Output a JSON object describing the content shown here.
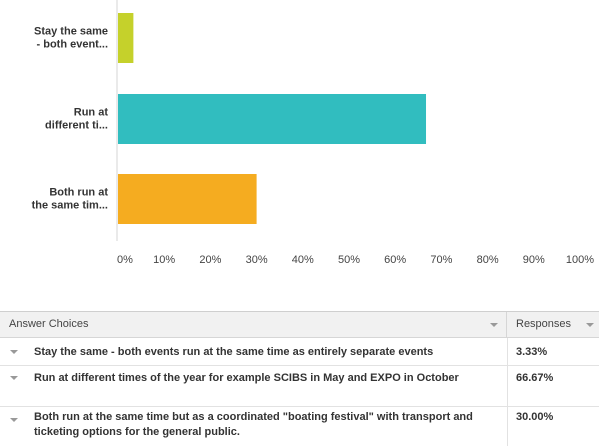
{
  "chart_data": {
    "type": "bar",
    "orientation": "horizontal",
    "categories": [
      "Stay the same - both event...",
      "Run at different ti...",
      "Both run at the same tim..."
    ],
    "category_label_lines": [
      [
        "Stay the same",
        "- both event..."
      ],
      [
        "Run at",
        "different ti..."
      ],
      [
        "Both run at",
        "the same tim..."
      ]
    ],
    "values": [
      3.33,
      66.67,
      30.0
    ],
    "colors": [
      "#c5d12b",
      "#31bdbf",
      "#f5ac20"
    ],
    "xlim": [
      0,
      100
    ],
    "x_ticks": [
      "0%",
      "10%",
      "20%",
      "30%",
      "40%",
      "50%",
      "60%",
      "70%",
      "80%",
      "90%",
      "100%"
    ],
    "grid": false
  },
  "table": {
    "header_choices": "Answer Choices",
    "header_responses": "Responses",
    "rows": [
      {
        "choice": "Stay the same - both events run at the same time as entirely separate events",
        "response": "3.33%"
      },
      {
        "choice": "Run at different times of the year for example SCIBS in May and EXPO in October",
        "response": "66.67%"
      },
      {
        "choice": "Both run at the same time but as a coordinated \"boating festival\" with transport and ticketing options for the general public.",
        "response": "30.00%"
      }
    ]
  }
}
